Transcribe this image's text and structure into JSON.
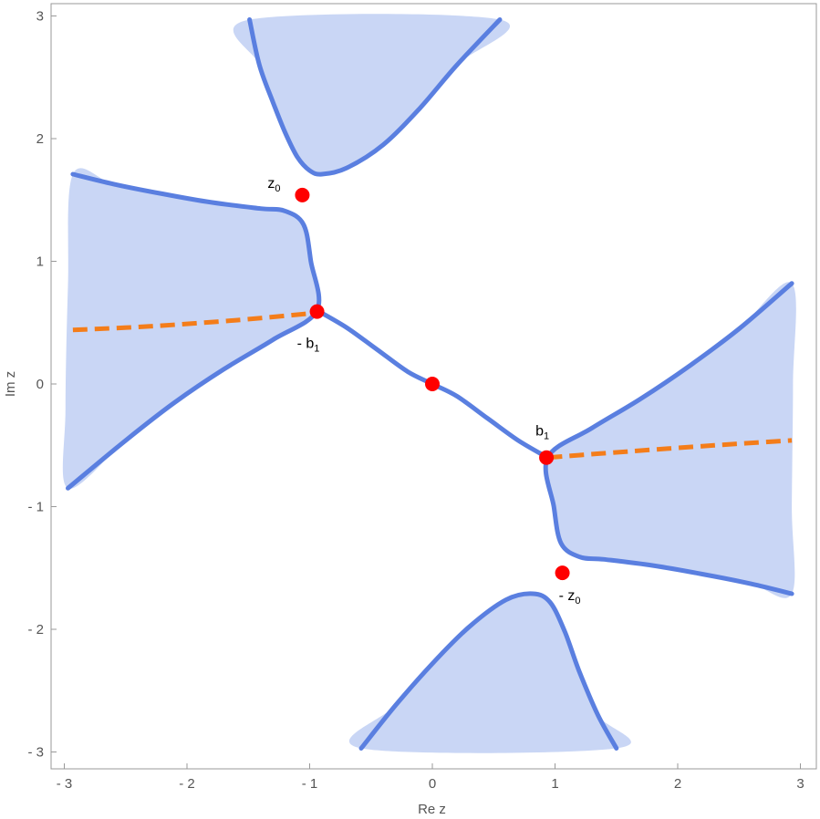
{
  "chart_data": {
    "type": "scatter",
    "title": "",
    "xlabel": "Re z",
    "ylabel": "Im z",
    "xlim": [
      -3,
      3
    ],
    "ylim": [
      -3,
      3
    ],
    "x_ticks": [
      {
        "value": -3,
        "label": "- 3"
      },
      {
        "value": -2,
        "label": "- 2"
      },
      {
        "value": -1,
        "label": "- 1"
      },
      {
        "value": 0,
        "label": "0"
      },
      {
        "value": 1,
        "label": "1"
      },
      {
        "value": 2,
        "label": "2"
      },
      {
        "value": 3,
        "label": "3"
      }
    ],
    "y_ticks": [
      {
        "value": -3,
        "label": "- 3"
      },
      {
        "value": -2,
        "label": "- 2"
      },
      {
        "value": -1,
        "label": "- 1"
      },
      {
        "value": 0,
        "label": "0"
      },
      {
        "value": 1,
        "label": "1"
      },
      {
        "value": 2,
        "label": "2"
      },
      {
        "value": 3,
        "label": "3"
      }
    ],
    "grid": false,
    "colors": {
      "region_fill": "#c9d6f5",
      "boundary": "#5a7fe0",
      "branch_cut": "#f47d1a",
      "points": "#ff0000",
      "frame": "#999999"
    },
    "regions": [
      {
        "name": "top",
        "points": [
          [
            -1.49,
            2.97
          ],
          [
            -1.41,
            2.6
          ],
          [
            -1.3,
            2.3
          ],
          [
            -1.2,
            2.05
          ],
          [
            -1.1,
            1.85
          ],
          [
            -1.0,
            1.74
          ],
          [
            -0.9,
            1.71
          ],
          [
            -0.7,
            1.76
          ],
          [
            -0.4,
            1.95
          ],
          [
            -0.1,
            2.25
          ],
          [
            0.2,
            2.6
          ],
          [
            0.55,
            2.97
          ]
        ]
      },
      {
        "name": "bottom",
        "points": [
          [
            -0.58,
            -2.97
          ],
          [
            -0.3,
            -2.62
          ],
          [
            0.0,
            -2.28
          ],
          [
            0.3,
            -1.98
          ],
          [
            0.6,
            -1.76
          ],
          [
            0.82,
            -1.71
          ],
          [
            0.96,
            -1.78
          ],
          [
            1.08,
            -2.02
          ],
          [
            1.2,
            -2.35
          ],
          [
            1.35,
            -2.7
          ],
          [
            1.5,
            -2.97
          ]
        ]
      },
      {
        "name": "left",
        "points": [
          [
            -2.93,
            1.71
          ],
          [
            -2.6,
            1.63
          ],
          [
            -2.2,
            1.55
          ],
          [
            -1.8,
            1.48
          ],
          [
            -1.4,
            1.43
          ],
          [
            -1.2,
            1.41
          ],
          [
            -1.05,
            1.3
          ],
          [
            -0.99,
            1.0
          ],
          [
            -0.94,
            0.6
          ],
          [
            -1.3,
            0.36
          ],
          [
            -1.7,
            0.12
          ],
          [
            -2.1,
            -0.15
          ],
          [
            -2.5,
            -0.46
          ],
          [
            -2.97,
            -0.85
          ],
          [
            -2.99,
            -0.2
          ],
          [
            -2.97,
            0.8
          ]
        ]
      },
      {
        "name": "right",
        "points": [
          [
            2.93,
            -1.71
          ],
          [
            2.6,
            -1.63
          ],
          [
            2.2,
            -1.55
          ],
          [
            1.8,
            -1.48
          ],
          [
            1.4,
            -1.43
          ],
          [
            1.2,
            -1.41
          ],
          [
            1.05,
            -1.3
          ],
          [
            0.99,
            -1.0
          ],
          [
            0.94,
            -0.6
          ],
          [
            1.3,
            -0.36
          ],
          [
            1.7,
            -0.12
          ],
          [
            2.1,
            0.15
          ],
          [
            2.5,
            0.45
          ],
          [
            2.93,
            0.82
          ],
          [
            2.94,
            0.0
          ],
          [
            2.93,
            -1.0
          ]
        ]
      }
    ],
    "curves": [
      {
        "name": "connecting-curve",
        "points": [
          [
            -0.94,
            0.6
          ],
          [
            -0.7,
            0.46
          ],
          [
            -0.45,
            0.28
          ],
          [
            -0.2,
            0.1
          ],
          [
            0.0,
            0.0
          ],
          [
            0.2,
            -0.1
          ],
          [
            0.45,
            -0.28
          ],
          [
            0.7,
            -0.46
          ],
          [
            0.94,
            -0.6
          ]
        ]
      }
    ],
    "branch_cuts": [
      {
        "name": "left-cut",
        "points": [
          [
            -2.93,
            0.44
          ],
          [
            -2.3,
            0.47
          ],
          [
            -1.6,
            0.52
          ],
          [
            -0.94,
            0.58
          ]
        ]
      },
      {
        "name": "right-cut",
        "points": [
          [
            0.94,
            -0.6
          ],
          [
            1.6,
            -0.55
          ],
          [
            2.3,
            -0.5
          ],
          [
            2.93,
            -0.46
          ]
        ]
      }
    ],
    "points": [
      {
        "name": "z0",
        "x": -1.06,
        "y": 1.54,
        "label": "z",
        "sub": "0",
        "prefix": ""
      },
      {
        "name": "neg-b1",
        "x": -0.94,
        "y": 0.59,
        "label": "b",
        "sub": "1",
        "prefix": "- "
      },
      {
        "name": "origin",
        "x": 0.0,
        "y": 0.0,
        "label": "",
        "sub": "",
        "prefix": ""
      },
      {
        "name": "b1",
        "x": 0.93,
        "y": -0.6,
        "label": "b",
        "sub": "1",
        "prefix": ""
      },
      {
        "name": "neg-z0",
        "x": 1.06,
        "y": -1.54,
        "label": "z",
        "sub": "0",
        "prefix": "- "
      }
    ]
  }
}
